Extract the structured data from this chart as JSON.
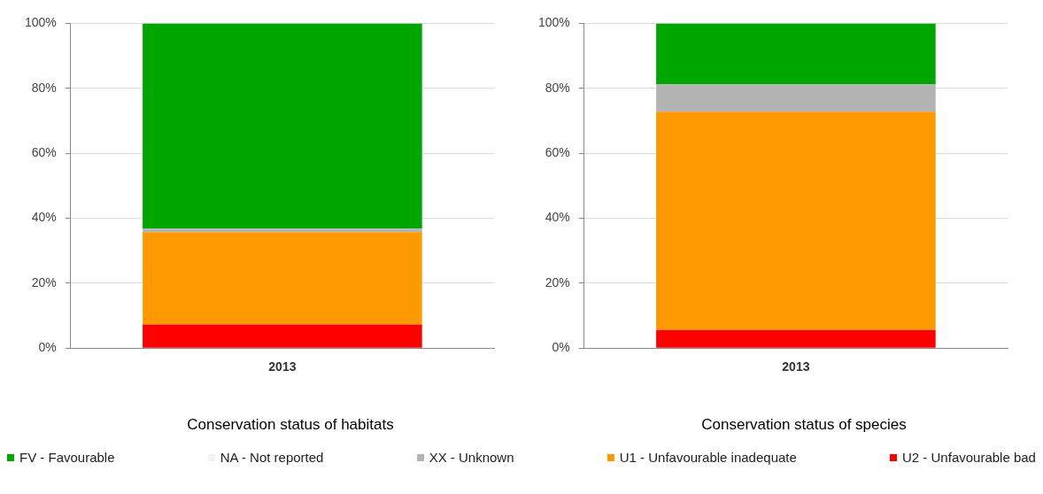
{
  "chart_data": [
    {
      "type": "bar",
      "stacked": true,
      "title": "Conservation status of habitats",
      "categories": [
        "2013"
      ],
      "series": [
        {
          "name": "U2 - Unfavourable bad",
          "color": "#ff0000",
          "values": [
            7.3
          ]
        },
        {
          "name": "U1 - Unfavourable inadequate",
          "color": "#ff9900",
          "values": [
            28.4
          ]
        },
        {
          "name": "XX - Unknown",
          "color": "#b3b3b3",
          "values": [
            1.1
          ]
        },
        {
          "name": "NA - Not reported",
          "color": "#f2f2f2",
          "values": [
            0
          ]
        },
        {
          "name": "FV - Favourable",
          "color": "#00a600",
          "values": [
            63.2
          ]
        }
      ],
      "ylim": [
        0,
        100
      ],
      "yticks": [
        {
          "value": 0,
          "label": "0%"
        },
        {
          "value": 20,
          "label": "20%"
        },
        {
          "value": 40,
          "label": "40%"
        },
        {
          "value": 60,
          "label": "60%"
        },
        {
          "value": 80,
          "label": "80%"
        },
        {
          "value": 100,
          "label": "100%"
        }
      ],
      "grid": "y",
      "legend": "bottom"
    },
    {
      "type": "bar",
      "stacked": true,
      "title": "Conservation status of species",
      "categories": [
        "2013"
      ],
      "series": [
        {
          "color": "#ff0000",
          "values": [
            5.6
          ]
        },
        {
          "color": "#ff9900",
          "values": [
            67.2
          ]
        },
        {
          "color": "#b3b3b3",
          "values": [
            8.4
          ]
        },
        {
          "color": "#f2f2f2",
          "values": [
            0
          ]
        },
        {
          "color": "#00a600",
          "values": [
            18.8
          ]
        }
      ],
      "ylim": [
        0,
        100
      ],
      "yticks": [
        {
          "value": 0,
          "label": "0%"
        },
        {
          "value": 20,
          "label": "20%"
        },
        {
          "value": 40,
          "label": "40%"
        },
        {
          "value": 60,
          "label": "60%"
        },
        {
          "value": 80,
          "label": "80%"
        },
        {
          "value": 100,
          "label": "100%"
        }
      ],
      "grid": "y"
    }
  ]
}
